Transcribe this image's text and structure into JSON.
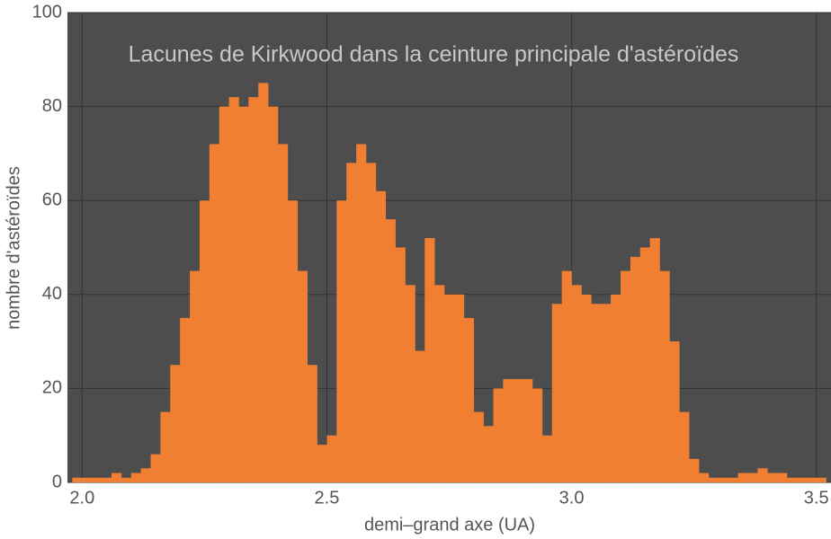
{
  "chart_data": {
    "type": "histogram",
    "title": "Lacunes de Kirkwood dans la ceinture principale d'astéroïdes",
    "x_label": "demi–grand axe (UA)",
    "y_label": "nombre d'astéroïdes",
    "color": "#f07f32",
    "bins": [
      1.98,
      2.0,
      2.02,
      2.04,
      2.06,
      2.08,
      2.1,
      2.12,
      2.14,
      2.16,
      2.18,
      2.2,
      2.22,
      2.24,
      2.26,
      2.28,
      2.3,
      2.32,
      2.34,
      2.36,
      2.38,
      2.4,
      2.42,
      2.44,
      2.46,
      2.48,
      2.5,
      2.52,
      2.54,
      2.56,
      2.58,
      2.6,
      2.62,
      2.64,
      2.66,
      2.68,
      2.7,
      2.72,
      2.74,
      2.76,
      2.78,
      2.8,
      2.82,
      2.84,
      2.86,
      2.88,
      2.9,
      2.92,
      2.94,
      2.96,
      2.98,
      3.0,
      3.02,
      3.04,
      3.06,
      3.08,
      3.1,
      3.12,
      3.14,
      3.16,
      3.18,
      3.2,
      3.22,
      3.24,
      3.26,
      3.28,
      3.3,
      3.32,
      3.34,
      3.36,
      3.38,
      3.4,
      3.42,
      3.44,
      3.46,
      3.48,
      3.5,
      3.52
    ],
    "values": [
      1,
      1,
      1,
      1,
      2,
      1,
      2,
      3,
      6,
      15,
      25,
      35,
      45,
      60,
      72,
      80,
      82,
      80,
      82,
      85,
      80,
      72,
      60,
      45,
      25,
      8,
      10,
      60,
      68,
      72,
      68,
      62,
      56,
      50,
      42,
      28,
      52,
      42,
      40,
      40,
      35,
      15,
      12,
      20,
      22,
      22,
      22,
      20,
      10,
      38,
      45,
      42,
      40,
      38,
      38,
      40,
      45,
      48,
      50,
      52,
      45,
      30,
      15,
      5,
      2,
      1,
      1,
      1,
      2,
      2,
      3,
      2,
      2,
      1,
      1,
      1,
      1
    ],
    "xlim": [
      1.97,
      3.53
    ],
    "ylim": [
      0,
      100
    ],
    "xticks": [
      {
        "value": 2.0,
        "label": "2.0"
      },
      {
        "value": 2.5,
        "label": "2.5"
      },
      {
        "value": 3.0,
        "label": "3.0"
      },
      {
        "value": 3.5,
        "label": "3.5"
      }
    ],
    "yticks": [
      0,
      20,
      40,
      60,
      80,
      100
    ],
    "grid": true
  }
}
